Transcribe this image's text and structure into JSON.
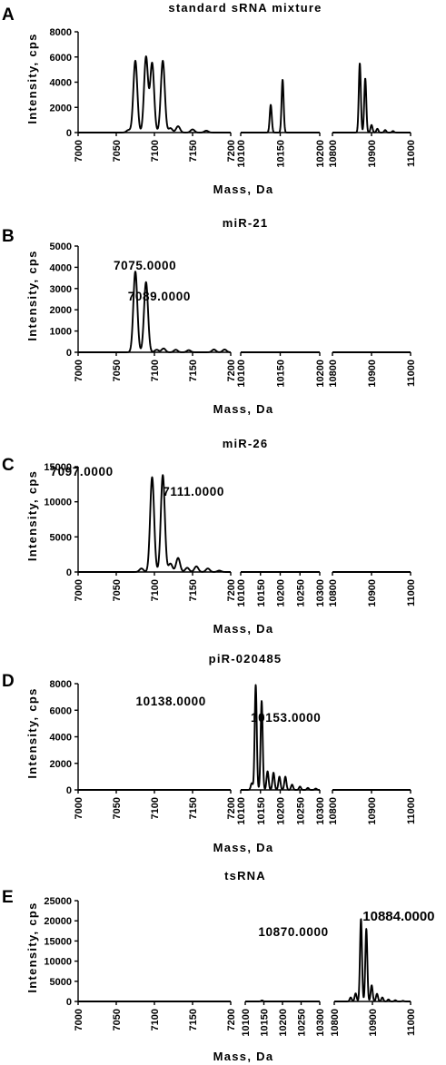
{
  "chart_data": [
    {
      "type": "line",
      "panel": "A",
      "title": "standard sRNA mixture",
      "xlabel": "Mass, Da",
      "ylabel": "Intensity, cps",
      "ylim": [
        0,
        8000
      ],
      "yticks": [
        0,
        2000,
        4000,
        6000,
        8000
      ],
      "broken_axis_segments": [
        {
          "xlim": [
            7000,
            7200
          ],
          "xticks": [
            7000,
            7050,
            7100,
            7150,
            7200
          ]
        },
        {
          "xlim": [
            10100,
            10200
          ],
          "xticks": [
            10100,
            10150,
            10200
          ]
        },
        {
          "xlim": [
            10800,
            11000
          ],
          "xticks": [
            10800,
            10900,
            11000
          ]
        }
      ],
      "peaks": [
        {
          "x": 7066,
          "y": 200
        },
        {
          "x": 7075,
          "y": 5700
        },
        {
          "x": 7089,
          "y": 6000
        },
        {
          "x": 7097,
          "y": 5500
        },
        {
          "x": 7111,
          "y": 5700
        },
        {
          "x": 7121,
          "y": 350
        },
        {
          "x": 7131,
          "y": 500
        },
        {
          "x": 7150,
          "y": 250
        },
        {
          "x": 7168,
          "y": 150
        },
        {
          "x": 10138,
          "y": 2200
        },
        {
          "x": 10153,
          "y": 4200
        },
        {
          "x": 10870,
          "y": 5500
        },
        {
          "x": 10884,
          "y": 4300
        },
        {
          "x": 10900,
          "y": 600
        },
        {
          "x": 10915,
          "y": 300
        },
        {
          "x": 10935,
          "y": 200
        },
        {
          "x": 10955,
          "y": 120
        }
      ],
      "annotations": []
    },
    {
      "type": "line",
      "panel": "B",
      "title": "miR-21",
      "xlabel": "Mass, Da",
      "ylabel": "Intensity, cps",
      "ylim": [
        0,
        5000
      ],
      "yticks": [
        0,
        1000,
        2000,
        3000,
        4000,
        5000
      ],
      "broken_axis_segments": [
        {
          "xlim": [
            7000,
            7200
          ],
          "xticks": [
            7000,
            7050,
            7100,
            7150,
            7200
          ]
        },
        {
          "xlim": [
            10100,
            10200
          ],
          "xticks": [
            10100,
            10150,
            10200
          ]
        },
        {
          "xlim": [
            10800,
            11000
          ],
          "xticks": [
            10800,
            10900,
            11000
          ]
        }
      ],
      "peaks": [
        {
          "x": 7075,
          "y": 3800
        },
        {
          "x": 7089,
          "y": 3300
        },
        {
          "x": 7103,
          "y": 120
        },
        {
          "x": 7112,
          "y": 180
        },
        {
          "x": 7128,
          "y": 120
        },
        {
          "x": 7145,
          "y": 100
        },
        {
          "x": 7178,
          "y": 130
        },
        {
          "x": 7192,
          "y": 130
        }
      ],
      "annotations": [
        {
          "text": "7075.0000",
          "x": 7075,
          "y": 3800
        },
        {
          "text": "7089.0000",
          "x": 7089,
          "y": 3300
        }
      ]
    },
    {
      "type": "line",
      "panel": "C",
      "title": "miR-26",
      "xlabel": "Mass, Da",
      "ylabel": "Intensity, cps",
      "ylim": [
        0,
        15000
      ],
      "yticks": [
        0,
        5000,
        10000,
        15000
      ],
      "broken_axis_segments": [
        {
          "xlim": [
            7000,
            7200
          ],
          "xticks": [
            7000,
            7050,
            7100,
            7150,
            7200
          ]
        },
        {
          "xlim": [
            10100,
            10300
          ],
          "xticks": [
            10100,
            10150,
            10200,
            10250,
            10300
          ]
        },
        {
          "xlim": [
            10800,
            11000
          ],
          "xticks": [
            10800,
            10900,
            11000
          ]
        }
      ],
      "peaks": [
        {
          "x": 7083,
          "y": 500
        },
        {
          "x": 7097,
          "y": 13500
        },
        {
          "x": 7111,
          "y": 13800
        },
        {
          "x": 7121,
          "y": 1200
        },
        {
          "x": 7131,
          "y": 2000
        },
        {
          "x": 7143,
          "y": 600
        },
        {
          "x": 7155,
          "y": 800
        },
        {
          "x": 7170,
          "y": 500
        },
        {
          "x": 7185,
          "y": 200
        }
      ],
      "annotations": [
        {
          "text": "7097.0000",
          "x": 7097,
          "y": 13500
        },
        {
          "text": "7111.0000",
          "x": 7111,
          "y": 13800
        }
      ]
    },
    {
      "type": "line",
      "panel": "D",
      "title": "piR-020485",
      "xlabel": "Mass, Da",
      "ylabel": "Intensity, cps",
      "ylim": [
        0,
        8000
      ],
      "yticks": [
        0,
        2000,
        4000,
        6000,
        8000
      ],
      "broken_axis_segments": [
        {
          "xlim": [
            7000,
            7200
          ],
          "xticks": [
            7000,
            7050,
            7100,
            7150,
            7200
          ]
        },
        {
          "xlim": [
            10100,
            10300
          ],
          "xticks": [
            10100,
            10150,
            10200,
            10250,
            10300
          ]
        },
        {
          "xlim": [
            10800,
            11000
          ],
          "xticks": [
            10800,
            10900,
            11000
          ]
        }
      ],
      "peaks": [
        {
          "x": 10128,
          "y": 500
        },
        {
          "x": 10138,
          "y": 7900
        },
        {
          "x": 10153,
          "y": 6700
        },
        {
          "x": 10168,
          "y": 1400
        },
        {
          "x": 10183,
          "y": 1300
        },
        {
          "x": 10198,
          "y": 1000
        },
        {
          "x": 10213,
          "y": 1000
        },
        {
          "x": 10230,
          "y": 400
        },
        {
          "x": 10250,
          "y": 250
        },
        {
          "x": 10270,
          "y": 150
        },
        {
          "x": 10290,
          "y": 100
        }
      ],
      "annotations": [
        {
          "text": "10138.0000",
          "x": 10138,
          "y": 7900
        },
        {
          "text": "10153.0000",
          "x": 10153,
          "y": 6700
        }
      ]
    },
    {
      "type": "line",
      "panel": "E",
      "title": "tsRNA",
      "xlabel": "Mass, Da",
      "ylabel": "Intensity, cps",
      "ylim": [
        0,
        25000
      ],
      "yticks": [
        0,
        5000,
        10000,
        15000,
        20000,
        25000
      ],
      "broken_axis_segments": [
        {
          "xlim": [
            7000,
            7200
          ],
          "xticks": [
            7000,
            7050,
            7100,
            7150,
            7200
          ]
        },
        {
          "xlim": [
            10100,
            10300
          ],
          "xticks": [
            10100,
            10150,
            10200,
            10250,
            10300
          ]
        },
        {
          "xlim": [
            10800,
            11000
          ],
          "xticks": [
            10800,
            10900,
            11000
          ]
        }
      ],
      "peaks": [
        {
          "x": 10145,
          "y": 250
        },
        {
          "x": 10843,
          "y": 1000
        },
        {
          "x": 10856,
          "y": 2000
        },
        {
          "x": 10870,
          "y": 20500
        },
        {
          "x": 10884,
          "y": 18000
        },
        {
          "x": 10898,
          "y": 4000
        },
        {
          "x": 10912,
          "y": 1900
        },
        {
          "x": 10926,
          "y": 1000
        },
        {
          "x": 10942,
          "y": 500
        },
        {
          "x": 10960,
          "y": 300
        },
        {
          "x": 10980,
          "y": 150
        }
      ],
      "annotations": [
        {
          "text": "10870.0000",
          "x": 10870,
          "y": 20500
        },
        {
          "text": "10884.0000",
          "x": 10884,
          "y": 18000
        }
      ]
    }
  ]
}
